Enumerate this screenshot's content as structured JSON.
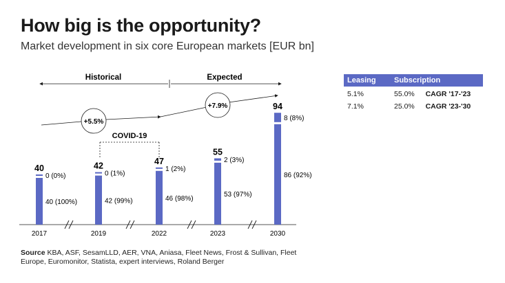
{
  "title": "How big is the opportunity?",
  "subtitle": "Market development in six core European markets [EUR bn]",
  "source": {
    "label": "Source",
    "text": "KBA, ASF, SesamLLD, AER, VNA, Aniasa, Fleet News, Frost & Sullivan, Fleet Europe, Euromonitor, Statista, expert interviews, Roland Berger"
  },
  "colors": {
    "bar": "#5b69c4",
    "header": "#5b69c4"
  },
  "periods": {
    "historical": "Historical",
    "expected": "Expected"
  },
  "cagr_bubbles": [
    "+5.5%",
    "+7.9%"
  ],
  "covid_label": "COVID-19",
  "table": {
    "headers": [
      "Leasing",
      "Subscription"
    ],
    "rows": [
      {
        "leasing": "5.1%",
        "subscription": "55.0%",
        "label": "CAGR '17-'23"
      },
      {
        "leasing": "7.1%",
        "subscription": "25.0%",
        "label": "CAGR '23-'30"
      }
    ]
  },
  "chart_data": {
    "type": "bar",
    "stacked": true,
    "categories": [
      "2017",
      "2019",
      "2022",
      "2023",
      "2030"
    ],
    "totals": [
      "40",
      "42",
      "47",
      "55",
      "94"
    ],
    "series": [
      {
        "name": "Leasing",
        "values": [
          40,
          42,
          46,
          53,
          86
        ],
        "labels": [
          "40 (100%)",
          "42 (99%)",
          "46 (98%)",
          "53 (97%)",
          "86 (92%)"
        ]
      },
      {
        "name": "Subscription",
        "values": [
          0,
          0,
          1,
          2,
          8
        ],
        "labels": [
          "0 (0%)",
          "0 (1%)",
          "1 (2%)",
          "2 (3%)",
          "8 (8%)"
        ]
      }
    ],
    "title": "How big is the opportunity?",
    "ylabel": "",
    "xlabel": "",
    "grid": false
  }
}
